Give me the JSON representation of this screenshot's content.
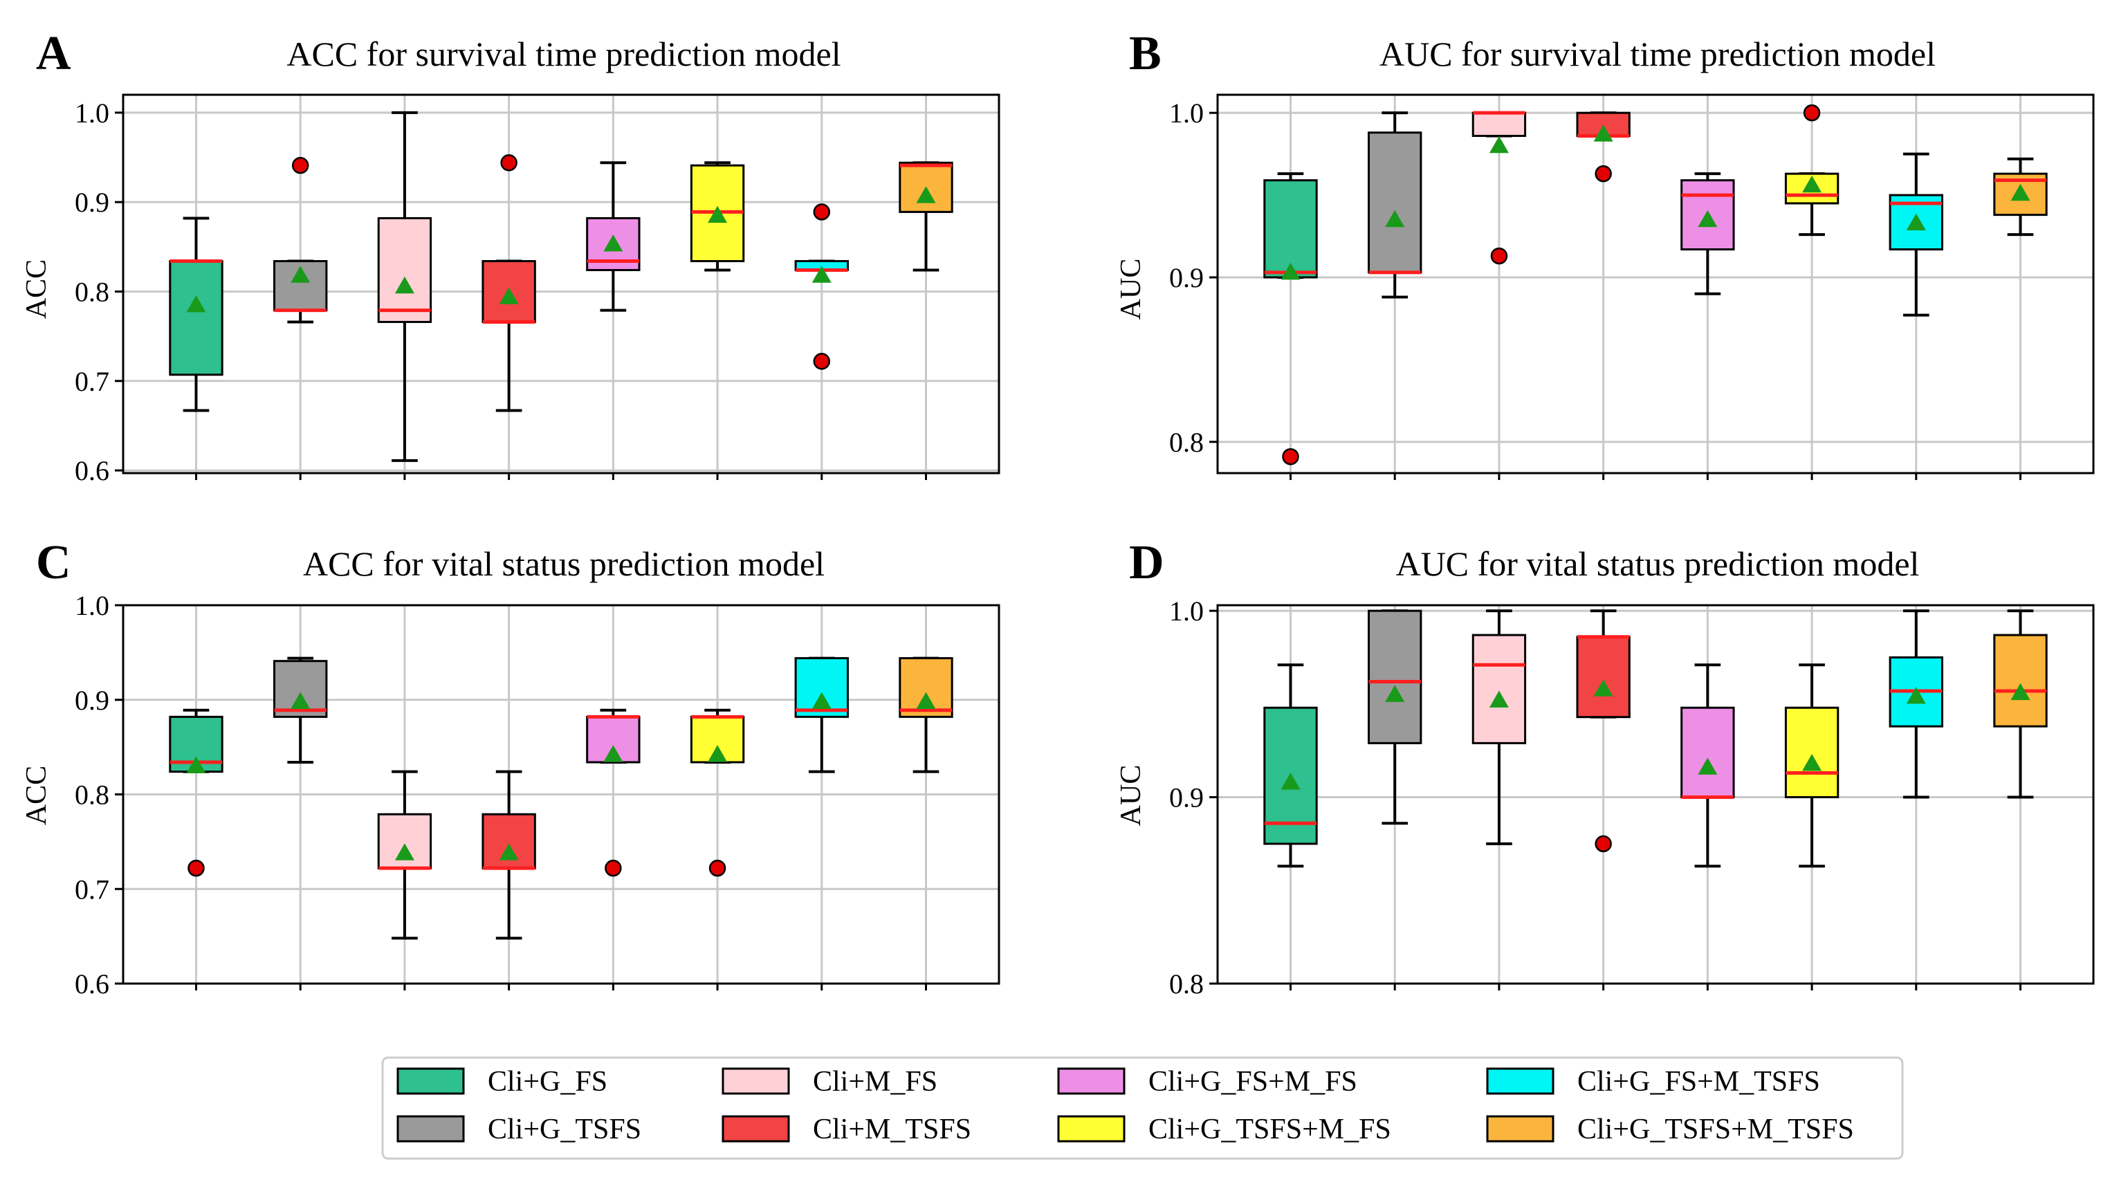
{
  "colors": {
    "Cli+G_FS": "#2ec08e",
    "Cli+G_TSFS": "#9a9a9a",
    "Cli+M_FS": "#ffd1d6",
    "Cli+M_TSFS": "#f24444",
    "Cli+G_FS+M_FS": "#ee8fe6",
    "Cli+G_TSFS+M_FS": "#ffff33",
    "Cli+G_FS+M_TSFS": "#00f5f5",
    "Cli+G_TSFS+M_TSFS": "#fbb53c",
    "median": "#ff1f1f",
    "mean": "#1a9a1a",
    "outlier": "#e30000",
    "grid": "#c8c8c8"
  },
  "legend": {
    "items": [
      "Cli+G_FS",
      "Cli+G_TSFS",
      "Cli+M_FS",
      "Cli+M_TSFS",
      "Cli+G_FS+M_FS",
      "Cli+G_TSFS+M_FS",
      "Cli+G_FS+M_TSFS",
      "Cli+G_TSFS+M_TSFS"
    ]
  },
  "chart_data": [
    {
      "id": "A",
      "type": "box",
      "title": "ACC for survival time prediction model",
      "panel_letter": "A",
      "ylabel": "ACC",
      "ylim": [
        0.597,
        1.02
      ],
      "yticks": [
        0.6,
        0.7,
        0.8,
        0.9,
        1.0
      ],
      "ytick_labels": [
        "0.6",
        "0.7",
        "0.8",
        "0.9",
        "1.0"
      ],
      "categories": [
        "Cli+G_FS",
        "Cli+G_TSFS",
        "Cli+M_FS",
        "Cli+M_TSFS",
        "Cli+G_FS+M_FS",
        "Cli+G_TSFS+M_FS",
        "Cli+G_FS+M_TSFS",
        "Cli+G_TSFS+M_TSFS"
      ],
      "boxes": [
        {
          "whislo": 0.667,
          "q1": 0.707,
          "med": 0.834,
          "q3": 0.834,
          "whishi": 0.882,
          "mean": 0.785,
          "fliers": []
        },
        {
          "whislo": 0.766,
          "q1": 0.779,
          "med": 0.779,
          "q3": 0.834,
          "whishi": 0.834,
          "mean": 0.818,
          "fliers": [
            0.941
          ]
        },
        {
          "whislo": 0.611,
          "q1": 0.766,
          "med": 0.779,
          "q3": 0.882,
          "whishi": 1.0,
          "mean": 0.806,
          "fliers": []
        },
        {
          "whislo": 0.667,
          "q1": 0.766,
          "med": 0.766,
          "q3": 0.834,
          "whishi": 0.834,
          "mean": 0.794,
          "fliers": [
            0.944
          ]
        },
        {
          "whislo": 0.779,
          "q1": 0.824,
          "med": 0.834,
          "q3": 0.882,
          "whishi": 0.944,
          "mean": 0.853,
          "fliers": []
        },
        {
          "whislo": 0.824,
          "q1": 0.834,
          "med": 0.889,
          "q3": 0.941,
          "whishi": 0.944,
          "mean": 0.885,
          "fliers": []
        },
        {
          "whislo": 0.824,
          "q1": 0.824,
          "med": 0.824,
          "q3": 0.834,
          "whishi": 0.834,
          "mean": 0.818,
          "fliers": [
            0.722,
            0.889
          ]
        },
        {
          "whislo": 0.824,
          "q1": 0.889,
          "med": 0.941,
          "q3": 0.944,
          "whishi": 0.944,
          "mean": 0.907,
          "fliers": []
        }
      ]
    },
    {
      "id": "B",
      "type": "box",
      "title": "AUC for survival time prediction model",
      "panel_letter": "B",
      "ylabel": "AUC",
      "ylim": [
        0.781,
        1.011
      ],
      "yticks": [
        0.8,
        0.9,
        1.0
      ],
      "ytick_labels": [
        "0.8",
        "0.9",
        "1.0"
      ],
      "categories": [
        "Cli+G_FS",
        "Cli+G_TSFS",
        "Cli+M_FS",
        "Cli+M_TSFS",
        "Cli+G_FS+M_FS",
        "Cli+G_TSFS+M_FS",
        "Cli+G_FS+M_TSFS",
        "Cli+G_TSFS+M_TSFS"
      ],
      "boxes": [
        {
          "whislo": 0.9,
          "q1": 0.9,
          "med": 0.903,
          "q3": 0.959,
          "whishi": 0.963,
          "mean": 0.903,
          "fliers": [
            0.791
          ]
        },
        {
          "whislo": 0.888,
          "q1": 0.903,
          "med": 0.903,
          "q3": 0.988,
          "whishi": 1.0,
          "mean": 0.935,
          "fliers": []
        },
        {
          "whislo": 0.986,
          "q1": 0.986,
          "med": 1.0,
          "q3": 1.0,
          "whishi": 1.0,
          "mean": 0.98,
          "fliers": [
            0.913
          ]
        },
        {
          "whislo": 0.986,
          "q1": 0.986,
          "med": 0.986,
          "q3": 1.0,
          "whishi": 1.0,
          "mean": 0.987,
          "fliers": [
            0.963
          ]
        },
        {
          "whislo": 0.89,
          "q1": 0.917,
          "med": 0.95,
          "q3": 0.959,
          "whishi": 0.963,
          "mean": 0.935,
          "fliers": []
        },
        {
          "whislo": 0.926,
          "q1": 0.945,
          "med": 0.95,
          "q3": 0.963,
          "whishi": 0.963,
          "mean": 0.956,
          "fliers": [
            1.0
          ]
        },
        {
          "whislo": 0.877,
          "q1": 0.917,
          "med": 0.945,
          "q3": 0.95,
          "whishi": 0.975,
          "mean": 0.933,
          "fliers": []
        },
        {
          "whislo": 0.926,
          "q1": 0.938,
          "med": 0.959,
          "q3": 0.963,
          "whishi": 0.972,
          "mean": 0.951,
          "fliers": []
        }
      ]
    },
    {
      "id": "C",
      "type": "box",
      "title": "ACC for vital status prediction model",
      "panel_letter": "C",
      "ylabel": "ACC",
      "ylim": [
        0.6,
        1.0
      ],
      "yticks": [
        0.6,
        0.7,
        0.8,
        0.9,
        1.0
      ],
      "ytick_labels": [
        "0.6",
        "0.7",
        "0.8",
        "0.9",
        "1.0"
      ],
      "categories": [
        "Cli+G_FS",
        "Cli+G_TSFS",
        "Cli+M_FS",
        "Cli+M_TSFS",
        "Cli+G_FS+M_FS",
        "Cli+G_TSFS+M_FS",
        "Cli+G_FS+M_TSFS",
        "Cli+G_TSFS+M_TSFS"
      ],
      "boxes": [
        {
          "whislo": 0.824,
          "q1": 0.824,
          "med": 0.834,
          "q3": 0.882,
          "whishi": 0.889,
          "mean": 0.83,
          "fliers": [
            0.722
          ]
        },
        {
          "whislo": 0.834,
          "q1": 0.882,
          "med": 0.889,
          "q3": 0.941,
          "whishi": 0.944,
          "mean": 0.898,
          "fliers": []
        },
        {
          "whislo": 0.648,
          "q1": 0.722,
          "med": 0.722,
          "q3": 0.779,
          "whishi": 0.824,
          "mean": 0.738,
          "fliers": []
        },
        {
          "whislo": 0.648,
          "q1": 0.722,
          "med": 0.722,
          "q3": 0.779,
          "whishi": 0.824,
          "mean": 0.738,
          "fliers": []
        },
        {
          "whislo": 0.834,
          "q1": 0.834,
          "med": 0.882,
          "q3": 0.882,
          "whishi": 0.889,
          "mean": 0.842,
          "fliers": [
            0.722
          ]
        },
        {
          "whislo": 0.834,
          "q1": 0.834,
          "med": 0.882,
          "q3": 0.882,
          "whishi": 0.889,
          "mean": 0.842,
          "fliers": [
            0.722
          ]
        },
        {
          "whislo": 0.824,
          "q1": 0.882,
          "med": 0.889,
          "q3": 0.944,
          "whishi": 0.944,
          "mean": 0.898,
          "fliers": []
        },
        {
          "whislo": 0.824,
          "q1": 0.882,
          "med": 0.889,
          "q3": 0.944,
          "whishi": 0.944,
          "mean": 0.898,
          "fliers": []
        }
      ]
    },
    {
      "id": "D",
      "type": "box",
      "title": "AUC for vital status prediction model",
      "panel_letter": "D",
      "ylabel": "AUC",
      "ylim": [
        0.8,
        1.003
      ],
      "yticks": [
        0.8,
        0.9,
        1.0
      ],
      "ytick_labels": [
        "0.8",
        "0.9",
        "1.0"
      ],
      "categories": [
        "Cli+G_FS",
        "Cli+G_TSFS",
        "Cli+M_FS",
        "Cli+M_TSFS",
        "Cli+G_FS+M_FS",
        "Cli+G_TSFS+M_FS",
        "Cli+G_FS+M_TSFS",
        "Cli+G_TSFS+M_TSFS"
      ],
      "boxes": [
        {
          "whislo": 0.863,
          "q1": 0.875,
          "med": 0.886,
          "q3": 0.948,
          "whishi": 0.971,
          "mean": 0.908,
          "fliers": []
        },
        {
          "whislo": 0.886,
          "q1": 0.929,
          "med": 0.962,
          "q3": 1.0,
          "whishi": 1.0,
          "mean": 0.955,
          "fliers": []
        },
        {
          "whislo": 0.875,
          "q1": 0.929,
          "med": 0.971,
          "q3": 0.987,
          "whishi": 1.0,
          "mean": 0.952,
          "fliers": []
        },
        {
          "whislo": 0.943,
          "q1": 0.943,
          "med": 0.986,
          "q3": 0.986,
          "whishi": 1.0,
          "mean": 0.958,
          "fliers": [
            0.875
          ]
        },
        {
          "whislo": 0.863,
          "q1": 0.9,
          "med": 0.9,
          "q3": 0.948,
          "whishi": 0.971,
          "mean": 0.916,
          "fliers": []
        },
        {
          "whislo": 0.863,
          "q1": 0.9,
          "med": 0.913,
          "q3": 0.948,
          "whishi": 0.971,
          "mean": 0.918,
          "fliers": []
        },
        {
          "whislo": 0.9,
          "q1": 0.938,
          "med": 0.957,
          "q3": 0.975,
          "whishi": 1.0,
          "mean": 0.954,
          "fliers": []
        },
        {
          "whislo": 0.9,
          "q1": 0.938,
          "med": 0.957,
          "q3": 0.987,
          "whishi": 1.0,
          "mean": 0.956,
          "fliers": []
        }
      ]
    }
  ]
}
